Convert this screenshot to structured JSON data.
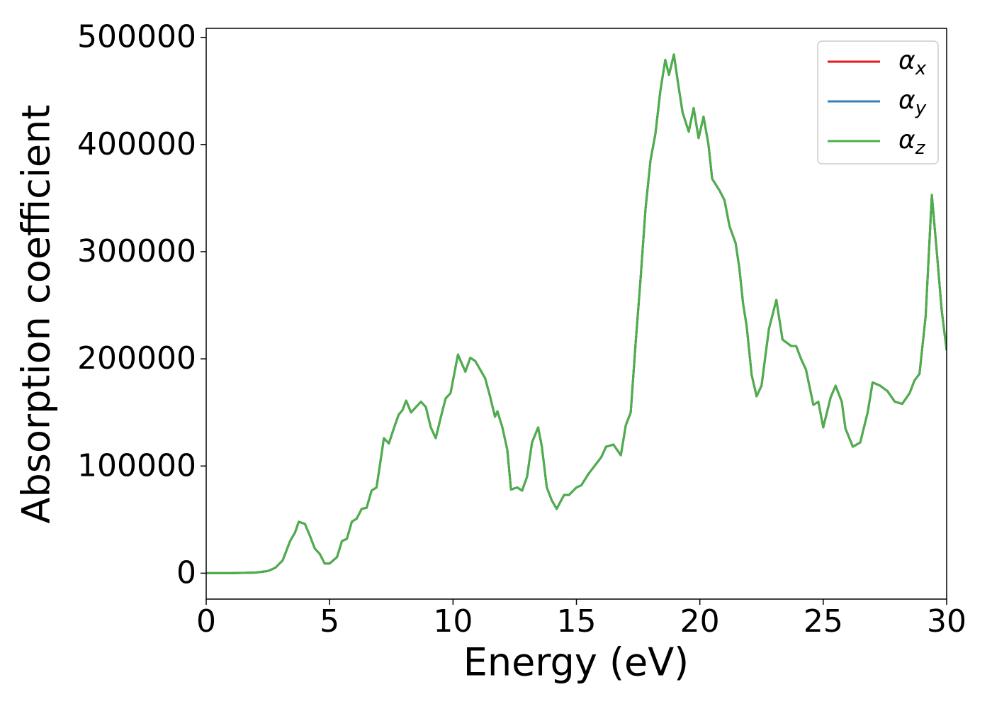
{
  "chart_data": {
    "type": "line",
    "xlabel": "Energy (eV)",
    "ylabel": "Absorption coefficient",
    "x": [
      0,
      1,
      2,
      2.5,
      2.8,
      3.1,
      3.4,
      3.6,
      3.75,
      4.0,
      4.2,
      4.4,
      4.6,
      4.8,
      5.0,
      5.3,
      5.5,
      5.7,
      5.9,
      6.1,
      6.3,
      6.5,
      6.7,
      6.9,
      7.0,
      7.2,
      7.4,
      7.6,
      7.8,
      7.95,
      8.1,
      8.3,
      8.5,
      8.7,
      8.9,
      9.1,
      9.3,
      9.5,
      9.7,
      9.9,
      10.2,
      10.5,
      10.7,
      10.9,
      11.1,
      11.3,
      11.5,
      11.7,
      11.8,
      12.0,
      12.2,
      12.35,
      12.6,
      12.8,
      13.0,
      13.2,
      13.45,
      13.6,
      13.8,
      14.0,
      14.2,
      14.5,
      14.7,
      15.0,
      15.2,
      15.5,
      15.8,
      16.0,
      16.2,
      16.5,
      16.8,
      17.0,
      17.2,
      17.4,
      17.6,
      17.8,
      18.0,
      18.2,
      18.4,
      18.6,
      18.75,
      18.95,
      19.1,
      19.3,
      19.55,
      19.75,
      19.95,
      20.15,
      20.35,
      20.5,
      20.8,
      21.0,
      21.2,
      21.45,
      21.6,
      21.75,
      21.9,
      22.1,
      22.3,
      22.5,
      22.8,
      23.1,
      23.35,
      23.7,
      23.9,
      24.1,
      24.3,
      24.6,
      24.8,
      25.0,
      25.3,
      25.5,
      25.75,
      25.9,
      26.2,
      26.5,
      26.8,
      27.0,
      27.3,
      27.6,
      27.9,
      28.2,
      28.5,
      28.7,
      28.9,
      29.15,
      29.4,
      29.6,
      29.8,
      30.0
    ],
    "series": [
      {
        "name": "αx",
        "color": "#e41a1c",
        "values": [
          0,
          0,
          500,
          2000,
          5000,
          12000,
          30000,
          38000,
          48000,
          46000,
          35000,
          23000,
          18000,
          9000,
          9000,
          15000,
          30000,
          32000,
          48000,
          51000,
          60000,
          61000,
          77000,
          80000,
          95000,
          126000,
          121000,
          135000,
          148000,
          152000,
          161000,
          150000,
          155000,
          160000,
          155000,
          136000,
          126000,
          145000,
          163000,
          168000,
          204000,
          188000,
          201000,
          198000,
          190000,
          182000,
          165000,
          146000,
          151000,
          136000,
          115000,
          78000,
          80000,
          77000,
          90000,
          122000,
          136000,
          118000,
          80000,
          68000,
          60000,
          73000,
          73000,
          80000,
          82000,
          93000,
          102000,
          108000,
          118000,
          120000,
          110000,
          138000,
          150000,
          215000,
          275000,
          340000,
          385000,
          410000,
          450000,
          479000,
          465000,
          484000,
          460000,
          430000,
          412000,
          434000,
          406000,
          426000,
          400000,
          368000,
          357000,
          348000,
          324000,
          308000,
          285000,
          252000,
          230000,
          185000,
          165000,
          175000,
          228000,
          255000,
          218000,
          212000,
          212000,
          200000,
          190000,
          157000,
          160000,
          136000,
          164000,
          175000,
          160000,
          135000,
          118000,
          122000,
          150000,
          178000,
          175000,
          170000,
          160000,
          158000,
          168000,
          180000,
          186000,
          240000,
          353000,
          300000,
          245000,
          208000
        ]
      },
      {
        "name": "αy",
        "color": "#377eb8",
        "values": [
          0,
          0,
          500,
          2000,
          5000,
          12000,
          30000,
          38000,
          48000,
          46000,
          35000,
          23000,
          18000,
          9000,
          9000,
          15000,
          30000,
          32000,
          48000,
          51000,
          60000,
          61000,
          77000,
          80000,
          95000,
          126000,
          121000,
          135000,
          148000,
          152000,
          161000,
          150000,
          155000,
          160000,
          155000,
          136000,
          126000,
          145000,
          163000,
          168000,
          204000,
          188000,
          201000,
          198000,
          190000,
          182000,
          165000,
          146000,
          151000,
          136000,
          115000,
          78000,
          80000,
          77000,
          90000,
          122000,
          136000,
          118000,
          80000,
          68000,
          60000,
          73000,
          73000,
          80000,
          82000,
          93000,
          102000,
          108000,
          118000,
          120000,
          110000,
          138000,
          150000,
          215000,
          275000,
          340000,
          385000,
          410000,
          450000,
          479000,
          465000,
          484000,
          460000,
          430000,
          412000,
          434000,
          406000,
          426000,
          400000,
          368000,
          357000,
          348000,
          324000,
          308000,
          285000,
          252000,
          230000,
          185000,
          165000,
          175000,
          228000,
          255000,
          218000,
          212000,
          212000,
          200000,
          190000,
          157000,
          160000,
          136000,
          164000,
          175000,
          160000,
          135000,
          118000,
          122000,
          150000,
          178000,
          175000,
          170000,
          160000,
          158000,
          168000,
          180000,
          186000,
          240000,
          353000,
          300000,
          245000,
          208000
        ]
      },
      {
        "name": "αz",
        "color": "#4daf4a",
        "values": [
          0,
          0,
          500,
          2000,
          5000,
          12000,
          30000,
          38000,
          48000,
          46000,
          35000,
          23000,
          18000,
          9000,
          9000,
          15000,
          30000,
          32000,
          48000,
          51000,
          60000,
          61000,
          77000,
          80000,
          95000,
          126000,
          121000,
          135000,
          148000,
          152000,
          161000,
          150000,
          155000,
          160000,
          155000,
          136000,
          126000,
          145000,
          163000,
          168000,
          204000,
          188000,
          201000,
          198000,
          190000,
          182000,
          165000,
          146000,
          151000,
          136000,
          115000,
          78000,
          80000,
          77000,
          90000,
          122000,
          136000,
          118000,
          80000,
          68000,
          60000,
          73000,
          73000,
          80000,
          82000,
          93000,
          102000,
          108000,
          118000,
          120000,
          110000,
          138000,
          150000,
          215000,
          275000,
          340000,
          385000,
          410000,
          450000,
          479000,
          465000,
          484000,
          460000,
          430000,
          412000,
          434000,
          406000,
          426000,
          400000,
          368000,
          357000,
          348000,
          324000,
          308000,
          285000,
          252000,
          230000,
          185000,
          165000,
          175000,
          228000,
          255000,
          218000,
          212000,
          212000,
          200000,
          190000,
          157000,
          160000,
          136000,
          164000,
          175000,
          160000,
          135000,
          118000,
          122000,
          150000,
          178000,
          175000,
          170000,
          160000,
          158000,
          168000,
          180000,
          186000,
          240000,
          353000,
          300000,
          245000,
          208000
        ]
      }
    ],
    "xlim": [
      0,
      30
    ],
    "xticks": [
      0,
      5,
      10,
      15,
      20,
      25,
      30
    ],
    "ylim": [
      -24200,
      508400
    ],
    "yticks": [
      0,
      100000,
      200000,
      300000,
      400000,
      500000
    ],
    "legend": "upper right",
    "grid": false
  }
}
